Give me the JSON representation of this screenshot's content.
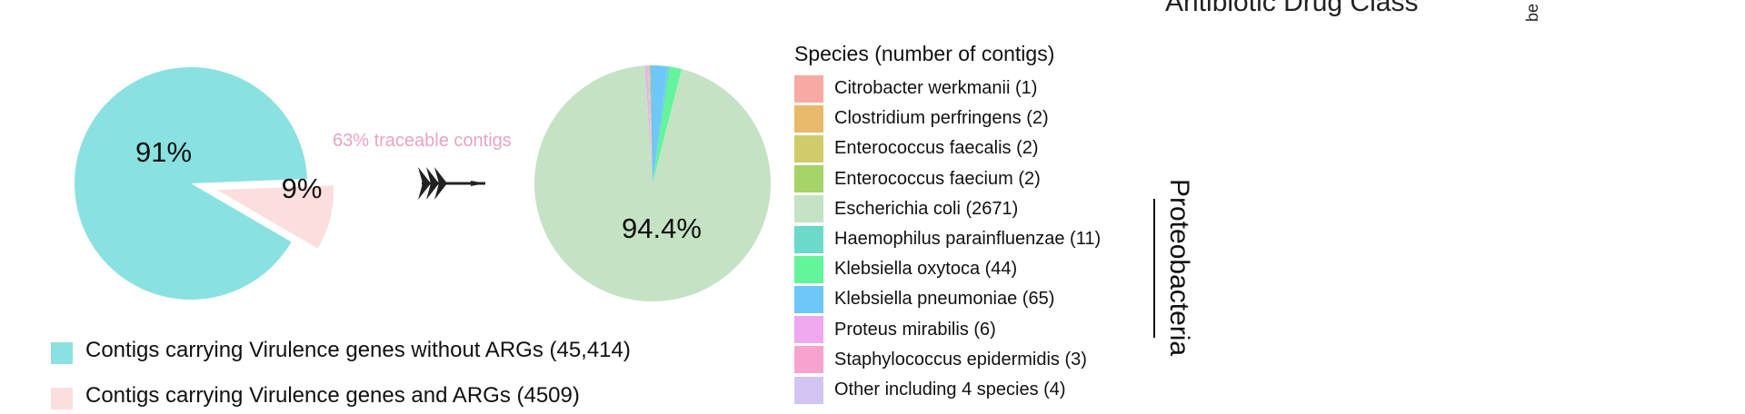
{
  "top_cut_title": "Antibiotic Drug Class",
  "top_cut_right": "be",
  "chart_data": [
    {
      "type": "pie",
      "slices": [
        {
          "label": "Contigs carrying Virulence genes without ARGs (45,414)",
          "value": 45414,
          "percent_label": "91%",
          "color": "#8ae1e1"
        },
        {
          "label": "Contigs carrying Virulence genes and ARGs (4509)",
          "value": 4509,
          "percent_label": "9%",
          "color": "#fbdedd"
        }
      ],
      "annotation": "63% traceable contigs"
    },
    {
      "type": "pie",
      "title": "Species (number of contigs)",
      "slices": [
        {
          "label": "Citrobacter werkmanii (1)",
          "value": 1,
          "color": "#f8a9a1"
        },
        {
          "label": "Clostridium perfringens (2)",
          "value": 2,
          "color": "#e8b96a"
        },
        {
          "label": "Enterococcus faecalis (2)",
          "value": 2,
          "color": "#cfcc6b"
        },
        {
          "label": "Enterococcus faecium (2)",
          "value": 2,
          "color": "#a6d468"
        },
        {
          "label": "Escherichia coli (2671)",
          "value": 2671,
          "color": "#c4e2c4"
        },
        {
          "label": "Haemophilus parainfluenzae (11)",
          "value": 11,
          "color": "#6cd9c9"
        },
        {
          "label": "Klebsiella oxytoca (44)",
          "value": 44,
          "color": "#62f59b"
        },
        {
          "label": "Klebsiella pneumoniae (65)",
          "value": 65,
          "color": "#6ec7f8"
        },
        {
          "label": "Proteus mirabilis (6)",
          "value": 6,
          "color": "#f0a8f0"
        },
        {
          "label": "Staphylococcus epidermidis (3)",
          "value": 3,
          "color": "#f8a3cf"
        },
        {
          "label": "Other including 4 species (4)",
          "value": 4,
          "color": "#d3c3f3"
        }
      ],
      "percent_label": "94.4%",
      "group_bracket": {
        "label": "Proteobacteria"
      }
    }
  ]
}
